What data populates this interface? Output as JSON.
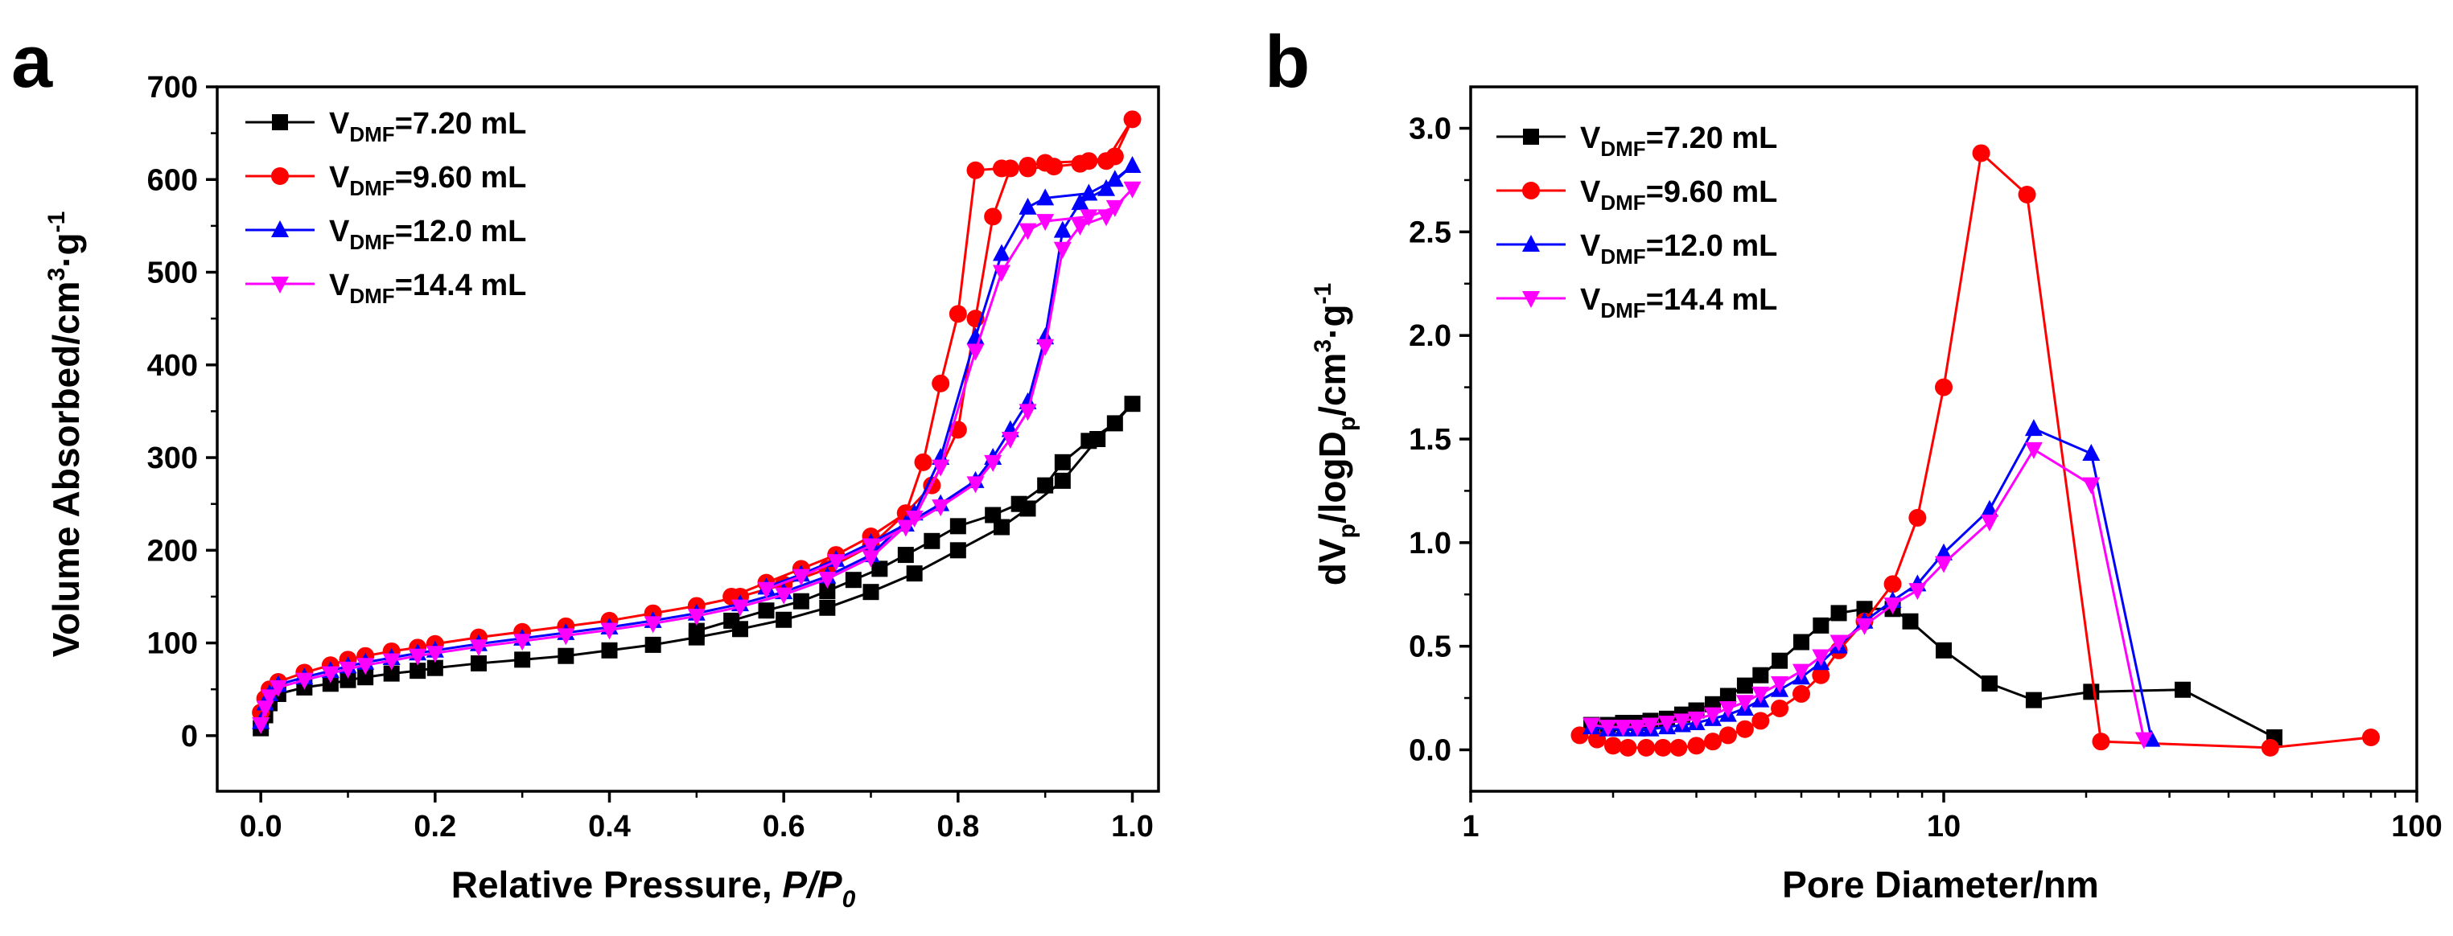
{
  "panels": [
    {
      "letter": "a",
      "x_label": "Relative Pressure, ",
      "x_label_italic": "P/P",
      "x_label_sub": "0",
      "y_label_main": "Volume Absorbed/cm",
      "y_label_sup1": "3",
      "y_label_mid": "·g",
      "y_label_sup2": "-1",
      "legend": [
        {
          "pre": "V",
          "sub": "DMF",
          "post": "=7.20 mL"
        },
        {
          "pre": "V",
          "sub": "DMF",
          "post": "=9.60 mL"
        },
        {
          "pre": "V",
          "sub": "DMF",
          "post": "=12.0 mL"
        },
        {
          "pre": "V",
          "sub": "DMF",
          "post": "=14.4 mL"
        }
      ]
    },
    {
      "letter": "b",
      "x_label": "Pore Diameter/nm",
      "y_label_main": "dV",
      "y_label_sub1": "p",
      "y_label_mid": "/logD",
      "y_label_sub2": "p",
      "y_label_end": "/cm",
      "y_label_sup1": "3",
      "y_label_dot": "·g",
      "y_label_sup2": "-1",
      "legend": [
        {
          "pre": "V",
          "sub": "DMF",
          "post": "=7.20 mL"
        },
        {
          "pre": "V",
          "sub": "DMF",
          "post": "=9.60 mL"
        },
        {
          "pre": "V",
          "sub": "DMF",
          "post": "=12.0 mL"
        },
        {
          "pre": "V",
          "sub": "DMF",
          "post": "=14.4 mL"
        }
      ]
    }
  ],
  "chart_data": [
    {
      "type": "line",
      "panel": "a",
      "title": "",
      "xlabel": "Relative Pressure, P/P0",
      "ylabel": "Volume Absorbed/cm3·g-1",
      "xlim": [
        -0.05,
        1.03
      ],
      "ylim": [
        -60,
        700
      ],
      "x_ticks": [
        0.0,
        0.2,
        0.4,
        0.6,
        0.8,
        1.0
      ],
      "x_tick_labels": [
        "0.0",
        "0.2",
        "0.4",
        "0.6",
        "0.8",
        "1.0"
      ],
      "y_ticks": [
        0,
        100,
        200,
        300,
        400,
        500,
        600,
        700
      ],
      "y_tick_labels": [
        "0",
        "100",
        "200",
        "300",
        "400",
        "500",
        "600",
        "700"
      ],
      "legend_position": "top-left",
      "series": [
        {
          "name": "VDMF=7.20 mL",
          "color": "#000000",
          "marker": "square",
          "x": [
            0.0,
            0.005,
            0.01,
            0.02,
            0.05,
            0.08,
            0.1,
            0.12,
            0.15,
            0.18,
            0.2,
            0.25,
            0.3,
            0.35,
            0.4,
            0.45,
            0.5,
            0.55,
            0.6,
            0.65,
            0.7,
            0.75,
            0.8,
            0.85,
            0.88,
            0.92,
            0.96,
            1.0,
            0.98,
            0.95,
            0.92,
            0.9,
            0.87,
            0.84,
            0.8,
            0.77,
            0.74,
            0.71,
            0.68,
            0.65,
            0.62,
            0.58,
            0.54,
            0.5
          ],
          "y": [
            8,
            22,
            35,
            45,
            52,
            56,
            60,
            63,
            67,
            70,
            73,
            78,
            82,
            86,
            92,
            98,
            106,
            115,
            125,
            138,
            155,
            175,
            200,
            225,
            245,
            275,
            320,
            358,
            337,
            318,
            295,
            270,
            250,
            238,
            226,
            210,
            195,
            180,
            168,
            156,
            145,
            135,
            124,
            113
          ]
        },
        {
          "name": "VDMF=9.60 mL",
          "color": "#ff0000",
          "marker": "circle",
          "x": [
            0.0,
            0.005,
            0.01,
            0.02,
            0.05,
            0.08,
            0.1,
            0.12,
            0.15,
            0.18,
            0.2,
            0.25,
            0.3,
            0.35,
            0.4,
            0.45,
            0.5,
            0.55,
            0.6,
            0.65,
            0.7,
            0.74,
            0.76,
            0.78,
            0.8,
            0.82,
            0.85,
            0.88,
            0.9,
            0.95,
            0.98,
            1.0,
            0.97,
            0.94,
            0.91,
            0.88,
            0.86,
            0.84,
            0.82,
            0.8,
            0.77,
            0.74,
            0.7,
            0.66,
            0.62,
            0.58,
            0.54
          ],
          "y": [
            25,
            40,
            50,
            58,
            68,
            76,
            82,
            86,
            91,
            95,
            99,
            106,
            112,
            118,
            124,
            132,
            140,
            150,
            163,
            180,
            205,
            240,
            295,
            380,
            455,
            610,
            612,
            615,
            618,
            620,
            625,
            665,
            620,
            617,
            614,
            612,
            612,
            560,
            450,
            330,
            270,
            240,
            215,
            195,
            180,
            165,
            150
          ]
        },
        {
          "name": "VDMF=12.0 mL",
          "color": "#0000ff",
          "marker": "triangle-up",
          "x": [
            0.0,
            0.005,
            0.01,
            0.02,
            0.05,
            0.08,
            0.1,
            0.12,
            0.15,
            0.18,
            0.2,
            0.25,
            0.3,
            0.35,
            0.4,
            0.45,
            0.5,
            0.55,
            0.6,
            0.65,
            0.7,
            0.75,
            0.78,
            0.82,
            0.85,
            0.88,
            0.9,
            0.95,
            0.98,
            1.0,
            0.97,
            0.94,
            0.92,
            0.9,
            0.88,
            0.86,
            0.84,
            0.82,
            0.78,
            0.74,
            0.7,
            0.66,
            0.62,
            0.58
          ],
          "y": [
            15,
            35,
            45,
            55,
            63,
            70,
            75,
            79,
            84,
            89,
            92,
            99,
            105,
            111,
            117,
            124,
            132,
            142,
            155,
            172,
            195,
            240,
            300,
            430,
            520,
            570,
            580,
            585,
            600,
            615,
            590,
            575,
            545,
            430,
            360,
            330,
            300,
            275,
            250,
            228,
            208,
            190,
            174,
            160
          ]
        },
        {
          "name": "VDMF=14.4 mL",
          "color": "#ff00ff",
          "marker": "triangle-down",
          "x": [
            0.0,
            0.005,
            0.01,
            0.02,
            0.05,
            0.08,
            0.1,
            0.12,
            0.15,
            0.18,
            0.2,
            0.25,
            0.3,
            0.35,
            0.4,
            0.45,
            0.5,
            0.55,
            0.6,
            0.65,
            0.7,
            0.75,
            0.78,
            0.82,
            0.85,
            0.88,
            0.9,
            0.95,
            0.98,
            1.0,
            0.97,
            0.94,
            0.92,
            0.9,
            0.88,
            0.86,
            0.84,
            0.82,
            0.78,
            0.74,
            0.7,
            0.66,
            0.62,
            0.58
          ],
          "y": [
            12,
            30,
            42,
            52,
            60,
            67,
            72,
            76,
            81,
            86,
            89,
            96,
            102,
            108,
            114,
            121,
            129,
            139,
            152,
            169,
            192,
            235,
            290,
            415,
            500,
            545,
            555,
            560,
            570,
            590,
            560,
            550,
            525,
            420,
            350,
            320,
            295,
            272,
            247,
            225,
            205,
            188,
            172,
            158
          ]
        }
      ]
    },
    {
      "type": "line",
      "panel": "b",
      "title": "",
      "xlabel": "Pore Diameter/nm",
      "ylabel": "dVp/logDp/cm3·g-1",
      "x_scale": "log",
      "xlim": [
        1,
        100
      ],
      "ylim": [
        -0.2,
        3.2
      ],
      "x_ticks": [
        1,
        10,
        100
      ],
      "x_tick_labels": [
        "1",
        "10",
        "100"
      ],
      "y_ticks": [
        0.0,
        0.5,
        1.0,
        1.5,
        2.0,
        2.5,
        3.0
      ],
      "y_tick_labels": [
        "0.0",
        "0.5",
        "1.0",
        "1.5",
        "2.0",
        "2.5",
        "3.0"
      ],
      "legend_position": "top-left",
      "series": [
        {
          "name": "VDMF=7.20 mL",
          "color": "#000000",
          "marker": "square",
          "x": [
            1.8,
            1.95,
            2.1,
            2.25,
            2.4,
            2.6,
            2.8,
            3.0,
            3.25,
            3.5,
            3.8,
            4.1,
            4.5,
            5.0,
            5.5,
            6.0,
            6.8,
            7.8,
            8.5,
            10.0,
            12.5,
            15.5,
            20.5,
            32.0,
            50.0
          ],
          "y": [
            0.12,
            0.12,
            0.13,
            0.13,
            0.14,
            0.15,
            0.17,
            0.19,
            0.22,
            0.26,
            0.31,
            0.36,
            0.43,
            0.52,
            0.6,
            0.66,
            0.68,
            0.68,
            0.62,
            0.48,
            0.32,
            0.24,
            0.28,
            0.29,
            0.06
          ]
        },
        {
          "name": "VDMF=9.60 mL",
          "color": "#ff0000",
          "marker": "circle",
          "x": [
            1.7,
            1.85,
            2.0,
            2.15,
            2.35,
            2.55,
            2.75,
            3.0,
            3.25,
            3.5,
            3.8,
            4.1,
            4.5,
            5.0,
            5.5,
            6.0,
            6.8,
            7.8,
            8.8,
            10.0,
            12.0,
            15.0,
            21.5,
            49.0,
            80.0
          ],
          "y": [
            0.07,
            0.05,
            0.02,
            0.01,
            0.01,
            0.01,
            0.01,
            0.02,
            0.04,
            0.07,
            0.1,
            0.14,
            0.2,
            0.27,
            0.36,
            0.48,
            0.62,
            0.8,
            1.12,
            1.75,
            2.88,
            2.68,
            0.04,
            0.01,
            0.06
          ]
        },
        {
          "name": "VDMF=12.0 mL",
          "color": "#0000ff",
          "marker": "triangle-up",
          "x": [
            1.8,
            1.95,
            2.1,
            2.25,
            2.4,
            2.6,
            2.8,
            3.0,
            3.25,
            3.5,
            3.8,
            4.1,
            4.5,
            5.0,
            5.5,
            6.0,
            6.8,
            7.8,
            8.8,
            10.0,
            12.5,
            15.5,
            20.5,
            27.5
          ],
          "y": [
            0.11,
            0.1,
            0.1,
            0.1,
            0.1,
            0.11,
            0.12,
            0.13,
            0.15,
            0.17,
            0.2,
            0.24,
            0.29,
            0.35,
            0.42,
            0.5,
            0.62,
            0.72,
            0.8,
            0.95,
            1.16,
            1.55,
            1.43,
            0.05
          ]
        },
        {
          "name": "VDMF=14.4 mL",
          "color": "#ff00ff",
          "marker": "triangle-down",
          "x": [
            1.8,
            1.95,
            2.1,
            2.25,
            2.4,
            2.6,
            2.8,
            3.0,
            3.25,
            3.5,
            3.8,
            4.1,
            4.5,
            5.0,
            5.5,
            6.0,
            6.8,
            7.8,
            8.8,
            10.0,
            12.5,
            15.5,
            20.5,
            26.5
          ],
          "y": [
            0.12,
            0.11,
            0.11,
            0.11,
            0.12,
            0.13,
            0.14,
            0.15,
            0.17,
            0.2,
            0.23,
            0.27,
            0.32,
            0.38,
            0.45,
            0.52,
            0.6,
            0.7,
            0.77,
            0.9,
            1.1,
            1.45,
            1.28,
            0.05
          ]
        }
      ]
    }
  ]
}
